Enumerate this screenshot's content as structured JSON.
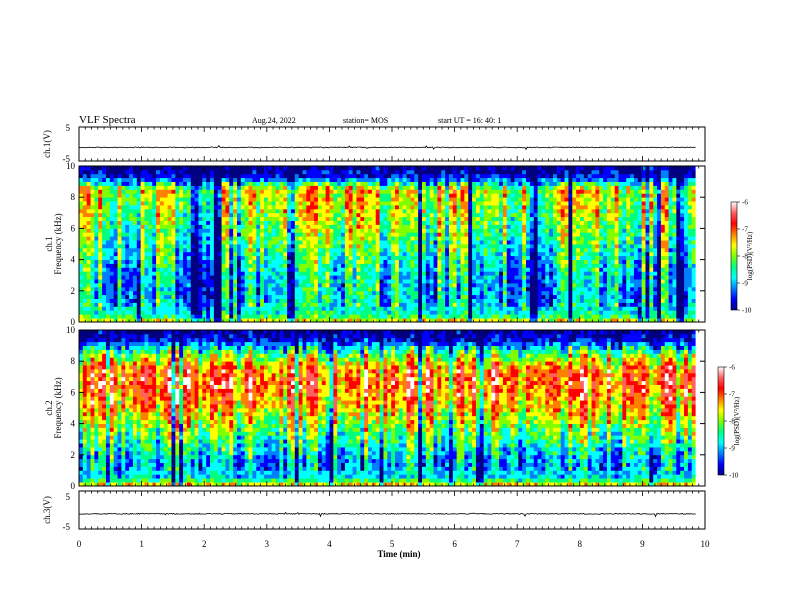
{
  "header": {
    "title": "VLF Spectra",
    "date": "Aug.24, 2022",
    "station": "station= MOS",
    "start_ut": "start  UT  =   16: 40: 1"
  },
  "chart_data": [
    {
      "type": "line",
      "name": "ch1-waveform-panel",
      "ylabel": "ch.1(V)",
      "ylim": [
        -5,
        5
      ],
      "yticks": [
        "5",
        "-5"
      ],
      "xlim": [
        0,
        10
      ],
      "approx_level": -1
    },
    {
      "type": "heatmap",
      "name": "ch1-spectrogram",
      "ylabel": "ch.1\nFrequency (kHz)",
      "ylim": [
        0,
        10
      ],
      "yticks": [
        "0",
        "2",
        "4",
        "6",
        "8",
        "10"
      ],
      "xlim": [
        0,
        10
      ],
      "data_end_min": 9.85,
      "colorbar": {
        "label": "log(PSD)(V²/Hz)",
        "range": [
          -10,
          -6
        ],
        "ticks": [
          "-6",
          "-7",
          "-8",
          "-9",
          "-10"
        ]
      },
      "profile": {
        "note": "approx log PSD vs frequency (kHz)",
        "freq": [
          0,
          0.5,
          1.5,
          3,
          5,
          7,
          8.5,
          9.3,
          10
        ],
        "log_psd": [
          -7.4,
          -8.6,
          -8.9,
          -8.8,
          -8.3,
          -7.9,
          -7.6,
          -9.6,
          -10
        ]
      }
    },
    {
      "type": "heatmap",
      "name": "ch2-spectrogram",
      "ylabel": "ch.2\nFrequency (kHz)",
      "ylim": [
        0,
        10
      ],
      "yticks": [
        "0",
        "2",
        "4",
        "6",
        "8",
        "10"
      ],
      "xlim": [
        0,
        10
      ],
      "data_end_min": 9.85,
      "colorbar": {
        "label": "log(PSD)(V²/Hz)",
        "range": [
          -10,
          -6
        ],
        "ticks": [
          "-6",
          "-7",
          "-8",
          "-9",
          "-10"
        ]
      },
      "profile": {
        "note": "approx log PSD vs frequency (kHz)",
        "freq": [
          0,
          0.5,
          1.5,
          3,
          5,
          6.5,
          7.5,
          8.5,
          9.3,
          10
        ],
        "log_psd": [
          -7.2,
          -8.8,
          -9.1,
          -8.4,
          -7.4,
          -6.9,
          -7.1,
          -8.2,
          -9.6,
          -10
        ]
      }
    },
    {
      "type": "line",
      "name": "ch3-waveform-panel",
      "ylabel": "ch.3(V)",
      "ylim": [
        -5,
        5
      ],
      "yticks": [
        "5",
        "-5"
      ],
      "xlim": [
        0,
        10
      ],
      "approx_level": -1
    }
  ],
  "x_axis": {
    "label": "Time  (min)",
    "ticks": [
      "0",
      "1",
      "2",
      "3",
      "4",
      "5",
      "6",
      "7",
      "8",
      "9",
      "10"
    ]
  },
  "colors": {
    "colormap": [
      "#000080",
      "#0000ff",
      "#0080ff",
      "#00ffff",
      "#00ff80",
      "#80ff00",
      "#ffff00",
      "#ff8000",
      "#ff0000",
      "#ff6060",
      "#ffffff"
    ]
  }
}
